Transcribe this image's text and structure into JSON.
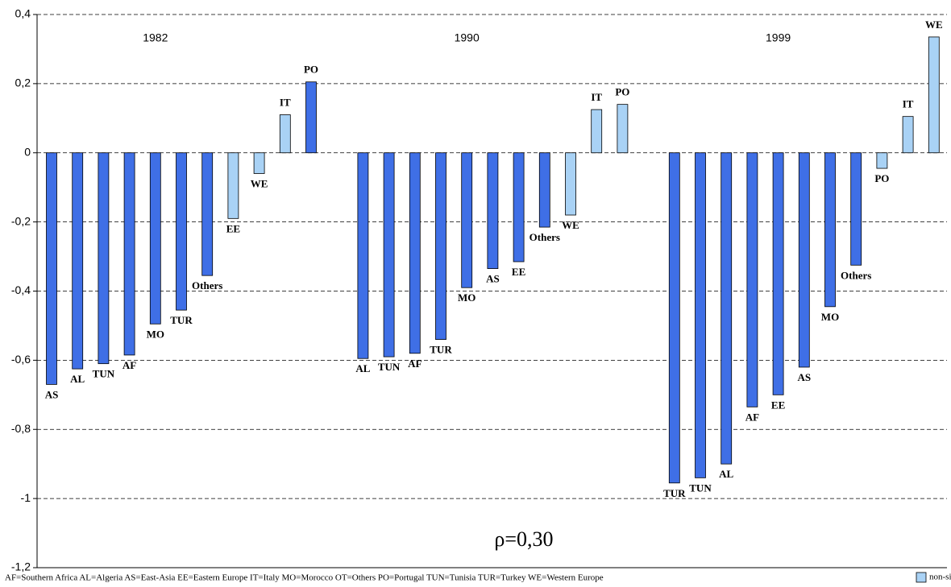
{
  "chart_data": {
    "type": "grouped-bar",
    "annotation": "ρ=0,30",
    "footnote": "AF=Southern Africa AL=Algeria  AS=East-Asia EE=Eastern Europe IT=Italy MO=Morocco OT=Others PO=Portugal TUN=Tunisia  TUR=Turkey  WE=Western Europe",
    "color": "#3f6fe6",
    "nonsignificant_color": "#a9d2f5",
    "legend": "non-significant",
    "ylim": [
      -1.2,
      0.4
    ],
    "yticks": [
      {
        "value": 0.4,
        "label": "0,4"
      },
      {
        "value": 0.2,
        "label": "0,2"
      },
      0,
      {
        "value": -0.2,
        "label": "-0,2"
      },
      {
        "value": -0.4,
        "label": "-0,4"
      },
      {
        "value": -0.6,
        "label": "-0,6"
      },
      {
        "value": -0.8,
        "label": "-0,8"
      },
      -1,
      {
        "value": -1.2,
        "label": "-1,2"
      }
    ],
    "grid": true,
    "groups": [
      {
        "title": "1982",
        "categories": [
          "AS",
          "AL",
          "TUN",
          "AF",
          "MO",
          "TUR",
          "Others",
          "EE",
          "WE",
          "IT",
          "PO"
        ],
        "values": [
          -0.67,
          -0.625,
          -0.61,
          -0.585,
          -0.495,
          -0.455,
          -0.355,
          -0.19,
          -0.06,
          0.11,
          0.205
        ],
        "significant": [
          true,
          true,
          true,
          true,
          true,
          true,
          true,
          false,
          false,
          false,
          true
        ]
      },
      {
        "title": "1990",
        "categories": [
          "AL",
          "TUN",
          "AF",
          "TUR",
          "MO",
          "AS",
          "EE",
          "Others",
          "WE",
          "IT",
          "PO"
        ],
        "values": [
          -0.595,
          -0.59,
          -0.58,
          -0.54,
          -0.39,
          -0.335,
          -0.315,
          -0.215,
          -0.18,
          0.125,
          0.14
        ],
        "significant": [
          true,
          true,
          true,
          true,
          true,
          true,
          true,
          true,
          false,
          false,
          false
        ]
      },
      {
        "title": "1999",
        "categories": [
          "TUR",
          "TUN",
          "AL",
          "AF",
          "EE",
          "AS",
          "MO",
          "Others",
          "PO",
          "IT",
          "WE"
        ],
        "values": [
          -0.955,
          -0.94,
          -0.9,
          -0.735,
          -0.7,
          -0.62,
          -0.445,
          -0.325,
          -0.045,
          0.105,
          0.335
        ],
        "significant": [
          true,
          true,
          true,
          true,
          true,
          true,
          true,
          true,
          false,
          false,
          false
        ]
      }
    ]
  }
}
